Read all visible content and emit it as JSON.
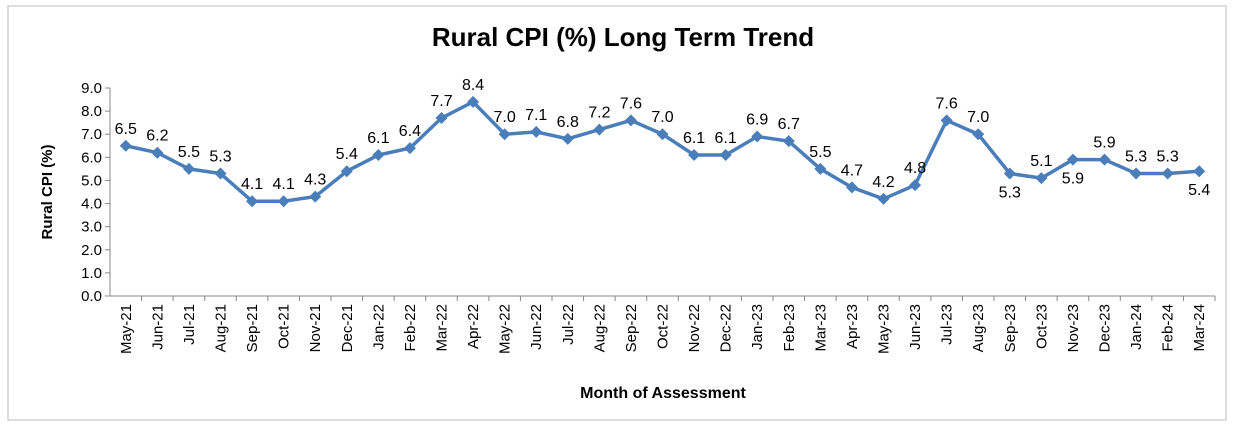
{
  "chart_data": {
    "type": "line",
    "title": "Rural CPI (%) Long Term Trend",
    "x_label": "Month of Assessment",
    "y_label": "Rural CPI (%)",
    "categories": [
      "May-21",
      "Jun-21",
      "Jul-21",
      "Aug-21",
      "Sep-21",
      "Oct-21",
      "Nov-21",
      "Dec-21",
      "Jan-22",
      "Feb-22",
      "Mar-22",
      "Apr-22",
      "May-22",
      "Jun-22",
      "Jul-22",
      "Aug-22",
      "Sep-22",
      "Oct-22",
      "Nov-22",
      "Dec-22",
      "Jan-23",
      "Feb-23",
      "Mar-23",
      "Apr-23",
      "May-23",
      "Jun-23",
      "Jul-23",
      "Aug-23",
      "Sep-23",
      "Oct-23",
      "Nov-23",
      "Dec-23",
      "Jan-24",
      "Feb-24",
      "Mar-24"
    ],
    "values": [
      6.5,
      6.2,
      5.5,
      5.3,
      4.1,
      4.1,
      4.3,
      5.4,
      6.1,
      6.4,
      7.7,
      8.4,
      7.0,
      7.1,
      6.8,
      7.2,
      7.6,
      7.0,
      6.1,
      6.1,
      6.9,
      6.7,
      5.5,
      4.7,
      4.2,
      4.8,
      7.6,
      7.0,
      5.3,
      5.1,
      5.9,
      5.9,
      5.3,
      5.3,
      5.4
    ],
    "value_labels": [
      "6.5",
      "6.2",
      "5.5",
      "5.3",
      "4.1",
      "4.1",
      "4.3",
      "5.4",
      "6.1",
      "6.4",
      "7.7",
      "8.4",
      "7.0",
      "7.1",
      "6.8",
      "7.2",
      "7.6",
      "7.0",
      "6.1",
      "6.1",
      "6.9",
      "6.7",
      "5.5",
      "4.7",
      "4.2",
      "4.8",
      "7.6",
      "7.0",
      "5.3",
      "5.1",
      "5.9",
      "5.9",
      "5.3",
      "5.3",
      "5.4"
    ],
    "color": "#4a7ebb",
    "ylim": [
      0,
      9
    ],
    "yticks": [
      {
        "value": 0,
        "label": "0.0"
      },
      {
        "value": 1,
        "label": "1.0"
      },
      {
        "value": 2,
        "label": "2.0"
      },
      {
        "value": 3,
        "label": "3.0"
      },
      {
        "value": 4,
        "label": "4.0"
      },
      {
        "value": 5,
        "label": "5.0"
      },
      {
        "value": 6,
        "label": "6.0"
      },
      {
        "value": 7,
        "label": "7.0"
      },
      {
        "value": 8,
        "label": "8.0"
      },
      {
        "value": 9,
        "label": "9.0"
      }
    ]
  }
}
